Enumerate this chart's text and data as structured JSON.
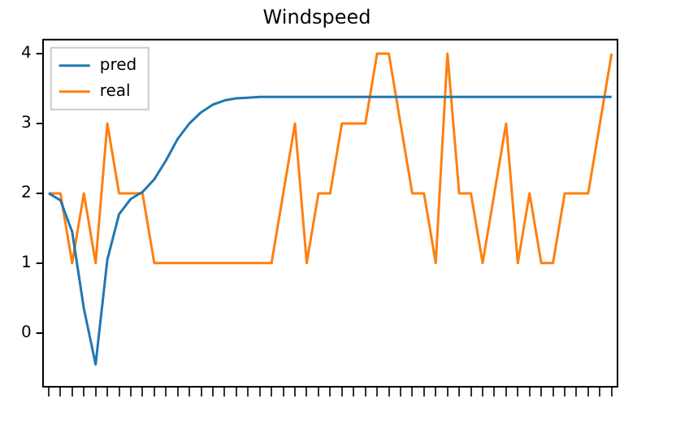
{
  "chart_data": {
    "type": "line",
    "title": "Windspeed",
    "categories": [
      null,
      null,
      null,
      null,
      null,
      null,
      null,
      null,
      null,
      null,
      null,
      null,
      null,
      null,
      null,
      null,
      null,
      null,
      null,
      null,
      null,
      null,
      null,
      null,
      null,
      null,
      null,
      null,
      null,
      null,
      null,
      null,
      null,
      null,
      null,
      null,
      null,
      null,
      null,
      null,
      null,
      null,
      null,
      null,
      null,
      null,
      null,
      null,
      null
    ],
    "series": [
      {
        "name": "pred",
        "color": "#1f77b4",
        "values": [
          2.0,
          1.9,
          1.45,
          0.35,
          -0.45,
          1.05,
          1.7,
          1.92,
          2.02,
          2.2,
          2.47,
          2.78,
          3.0,
          3.16,
          3.27,
          3.33,
          3.36,
          3.37,
          3.38,
          3.38,
          3.38,
          3.38,
          3.38,
          3.38,
          3.38,
          3.38,
          3.38,
          3.38,
          3.38,
          3.38,
          3.38,
          3.38,
          3.38,
          3.38,
          3.38,
          3.38,
          3.38,
          3.38,
          3.38,
          3.38,
          3.38,
          3.38,
          3.38,
          3.38,
          3.38,
          3.38,
          3.38,
          3.38,
          3.38
        ]
      },
      {
        "name": "real",
        "color": "#ff7f0e",
        "values": [
          2,
          2,
          1,
          2,
          1,
          3,
          2,
          2,
          2,
          1,
          1,
          1,
          1,
          1,
          1,
          1,
          1,
          1,
          1,
          1,
          2,
          3,
          1,
          2,
          2,
          3,
          3,
          3,
          4,
          4,
          3,
          2,
          2,
          1,
          4,
          2,
          2,
          1,
          2,
          3,
          1,
          2,
          1,
          1,
          2,
          2,
          2,
          3,
          4
        ]
      }
    ],
    "ylim": [
      -0.77,
      4.2
    ],
    "yticks": [
      0,
      1,
      2,
      3,
      4
    ],
    "tick_labels": "y",
    "legend": "top left",
    "marker": "none",
    "line_style": "solid"
  }
}
